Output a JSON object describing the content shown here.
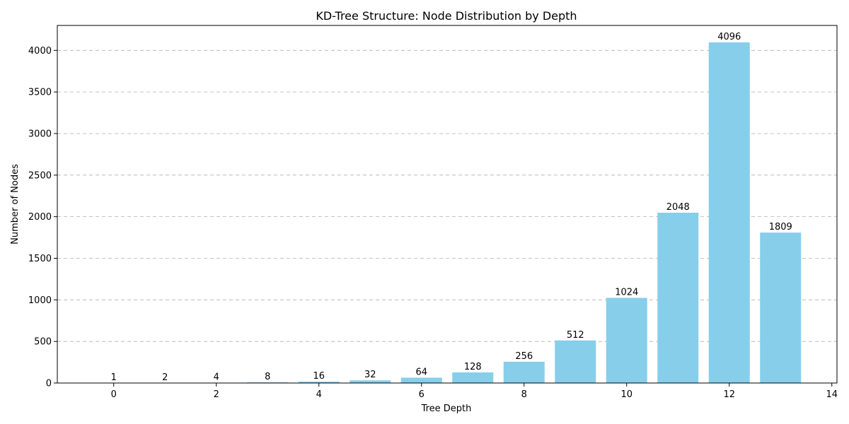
{
  "chart_data": {
    "type": "bar",
    "title": "KD-Tree Structure: Node Distribution by Depth",
    "xlabel": "Tree Depth",
    "ylabel": "Number of Nodes",
    "x": [
      0,
      1,
      2,
      3,
      4,
      5,
      6,
      7,
      8,
      9,
      10,
      11,
      12,
      13
    ],
    "values": [
      1,
      2,
      4,
      8,
      16,
      32,
      64,
      128,
      256,
      512,
      1024,
      2048,
      4096,
      1809
    ],
    "data_labels": [
      "1",
      "2",
      "4",
      "8",
      "16",
      "32",
      "64",
      "128",
      "256",
      "512",
      "1024",
      "2048",
      "4096",
      "1809"
    ],
    "xlim": [
      -1.1,
      14.1
    ],
    "ylim": [
      0,
      4300
    ],
    "xticks": [
      0,
      2,
      4,
      6,
      8,
      10,
      12,
      14
    ],
    "yticks": [
      0,
      500,
      1000,
      1500,
      2000,
      2500,
      3000,
      3500,
      4000
    ],
    "grid": "y-dashed",
    "bar_color": "#87ceeb"
  }
}
